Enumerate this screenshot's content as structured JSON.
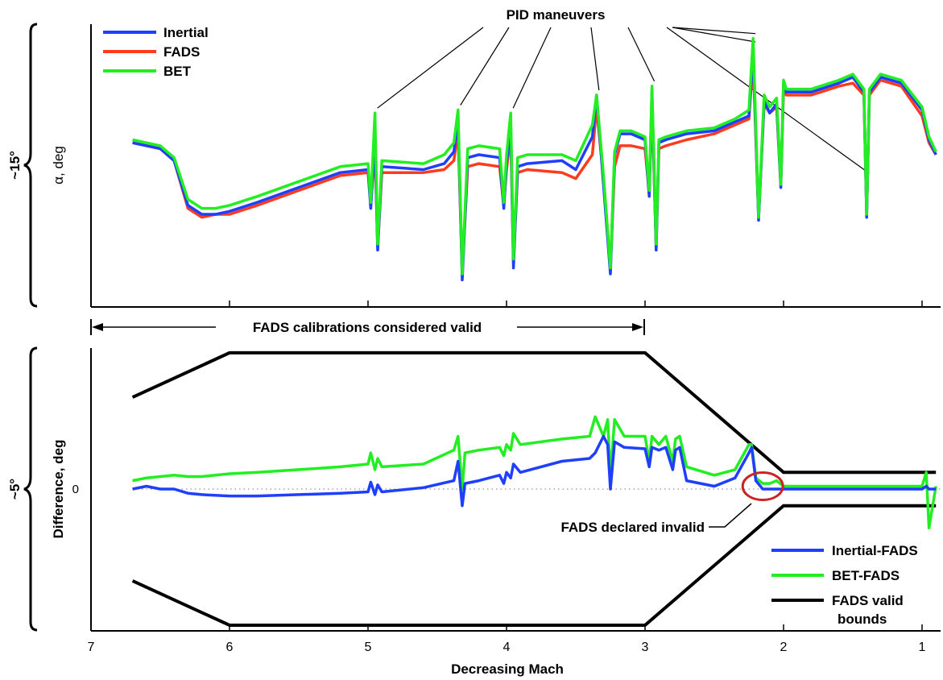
{
  "chart_data": [
    {
      "type": "line",
      "ylabel": "α, deg",
      "yspan_label": "~15°",
      "xlim": [
        7,
        0.9
      ],
      "xaxis_reversed": true,
      "legend": {
        "placement": "top-left",
        "entries": [
          "Inertial",
          "FADS",
          "BET"
        ]
      },
      "annotation": "PID maneuvers",
      "series": [
        {
          "name": "Inertial",
          "color": "#1f3fff",
          "x": [
            6.7,
            6.5,
            6.4,
            6.3,
            6.2,
            6.1,
            6.0,
            5.8,
            5.5,
            5.2,
            5.0,
            4.98,
            4.95,
            4.93,
            4.9,
            4.6,
            4.45,
            4.38,
            4.35,
            4.32,
            4.28,
            4.2,
            4.05,
            4.02,
            4.0,
            3.97,
            3.95,
            3.92,
            3.85,
            3.6,
            3.5,
            3.38,
            3.35,
            3.3,
            3.25,
            3.22,
            3.18,
            3.1,
            3.0,
            2.97,
            2.95,
            2.92,
            2.9,
            2.85,
            2.7,
            2.5,
            2.35,
            2.25,
            2.22,
            2.18,
            2.14,
            2.1,
            2.05,
            2.02,
            2.0,
            1.98,
            1.8,
            1.6,
            1.5,
            1.42,
            1.4,
            1.38,
            1.3,
            1.15,
            1.0,
            0.95,
            0.9
          ],
          "y": [
            9.4,
            9.2,
            8.8,
            7.3,
            7.0,
            7.0,
            7.1,
            7.4,
            7.9,
            8.4,
            8.5,
            7.2,
            9.6,
            5.8,
            8.6,
            8.5,
            8.7,
            9.1,
            10.2,
            4.8,
            8.9,
            9.0,
            8.9,
            7.2,
            8.7,
            10.0,
            5.2,
            8.6,
            8.7,
            8.8,
            8.5,
            9.6,
            11.0,
            8.0,
            5.0,
            9.0,
            9.7,
            9.7,
            9.5,
            7.6,
            11.1,
            5.8,
            9.4,
            9.5,
            9.7,
            9.8,
            10.1,
            10.3,
            12.5,
            6.8,
            10.8,
            10.4,
            10.7,
            7.9,
            11.4,
            11.1,
            11.1,
            11.4,
            11.6,
            11.1,
            6.9,
            11.1,
            11.6,
            11.4,
            10.5,
            9.5,
            9.0
          ]
        },
        {
          "name": "FADS",
          "color": "#ff3b1f",
          "x": [
            6.7,
            6.5,
            6.4,
            6.3,
            6.2,
            6.1,
            6.0,
            5.8,
            5.5,
            5.2,
            5.0,
            4.98,
            4.95,
            4.93,
            4.9,
            4.6,
            4.45,
            4.38,
            4.35,
            4.32,
            4.28,
            4.2,
            4.05,
            4.02,
            4.0,
            3.97,
            3.95,
            3.92,
            3.85,
            3.6,
            3.5,
            3.38,
            3.35,
            3.3,
            3.25,
            3.22,
            3.18,
            3.1,
            3.0,
            2.97,
            2.95,
            2.92,
            2.9,
            2.85,
            2.7,
            2.5,
            2.35,
            2.25,
            2.22,
            2.18,
            2.14,
            2.1,
            2.05,
            2.02,
            2.0,
            1.98,
            1.8,
            1.6,
            1.5,
            1.42,
            1.4,
            1.38,
            1.3,
            1.15,
            1.0,
            0.95,
            0.9
          ],
          "y": [
            9.4,
            9.2,
            8.8,
            7.2,
            6.9,
            7.0,
            7.0,
            7.3,
            7.8,
            8.3,
            8.4,
            7.3,
            9.2,
            5.9,
            8.4,
            8.4,
            8.5,
            8.8,
            9.8,
            5.0,
            8.6,
            8.7,
            8.6,
            7.3,
            8.5,
            9.7,
            5.4,
            8.4,
            8.5,
            8.4,
            8.2,
            9.0,
            10.6,
            8.2,
            5.2,
            8.6,
            9.3,
            9.3,
            9.2,
            7.7,
            10.8,
            5.9,
            9.2,
            9.3,
            9.5,
            9.7,
            10.0,
            10.2,
            12.2,
            6.9,
            10.7,
            10.4,
            10.6,
            8.0,
            11.2,
            11.0,
            11.0,
            11.3,
            11.4,
            11.0,
            7.0,
            11.0,
            11.5,
            11.3,
            10.3,
            9.4,
            9.0
          ]
        },
        {
          "name": "BET",
          "color": "#22ee22",
          "x": [
            6.7,
            6.5,
            6.4,
            6.3,
            6.2,
            6.1,
            6.0,
            5.8,
            5.5,
            5.2,
            5.0,
            4.98,
            4.95,
            4.93,
            4.9,
            4.6,
            4.45,
            4.38,
            4.35,
            4.32,
            4.28,
            4.2,
            4.05,
            4.02,
            4.0,
            3.97,
            3.95,
            3.92,
            3.85,
            3.6,
            3.5,
            3.38,
            3.35,
            3.3,
            3.25,
            3.22,
            3.18,
            3.1,
            3.0,
            2.97,
            2.95,
            2.92,
            2.9,
            2.85,
            2.7,
            2.5,
            2.35,
            2.25,
            2.22,
            2.18,
            2.14,
            2.1,
            2.05,
            2.02,
            2.0,
            1.98,
            1.8,
            1.6,
            1.5,
            1.42,
            1.4,
            1.38,
            1.3,
            1.15,
            1.0,
            0.95,
            0.9
          ],
          "y": [
            9.5,
            9.3,
            8.9,
            7.5,
            7.2,
            7.2,
            7.3,
            7.6,
            8.1,
            8.6,
            8.7,
            7.4,
            10.4,
            6.0,
            8.8,
            8.7,
            9.0,
            9.4,
            10.5,
            5.0,
            9.2,
            9.3,
            9.2,
            7.4,
            9.0,
            10.4,
            5.5,
            8.9,
            9.0,
            9.0,
            8.8,
            10.0,
            11.0,
            8.3,
            5.2,
            9.1,
            9.8,
            9.8,
            9.6,
            7.8,
            11.3,
            6.0,
            9.5,
            9.6,
            9.8,
            9.9,
            10.2,
            10.5,
            12.9,
            6.9,
            11.0,
            10.6,
            10.9,
            8.0,
            11.5,
            11.2,
            11.2,
            11.5,
            11.7,
            11.2,
            7.0,
            11.2,
            11.7,
            11.5,
            10.6,
            9.6,
            9.1
          ]
        }
      ]
    },
    {
      "type": "line",
      "xlabel": "Decreasing Mach",
      "ylabel": "Difference, deg",
      "yspan_label": "~5°",
      "ytick_labels": [
        "0"
      ],
      "xticks": [
        "7",
        "6",
        "5",
        "4",
        "3",
        "2",
        "1"
      ],
      "xlim": [
        7,
        0.9
      ],
      "xaxis_reversed": true,
      "legend": {
        "placement": "bottom-right",
        "entries": [
          "Inertial-FADS",
          "BET-FADS",
          "FADS valid bounds"
        ]
      },
      "annotations": [
        "FADS calibrations considered valid",
        "FADS declared invalid"
      ],
      "valid_range_mach": [
        7,
        3
      ],
      "series": [
        {
          "name": "Inertial-FADS",
          "color": "#1f3fff",
          "x": [
            6.7,
            6.6,
            6.5,
            6.4,
            6.3,
            6.2,
            6.0,
            5.8,
            5.5,
            5.2,
            5.0,
            4.98,
            4.95,
            4.93,
            4.9,
            4.6,
            4.38,
            4.35,
            4.32,
            4.3,
            4.2,
            4.05,
            4.02,
            4.0,
            3.97,
            3.95,
            3.9,
            3.6,
            3.4,
            3.36,
            3.3,
            3.27,
            3.25,
            3.22,
            3.15,
            3.0,
            2.97,
            2.95,
            2.9,
            2.85,
            2.8,
            2.78,
            2.75,
            2.7,
            2.5,
            2.35,
            2.25,
            2.23,
            2.2,
            2.15,
            2.1,
            2.0,
            1.8,
            1.5,
            1.2,
            1.0,
            0.97,
            0.95,
            0.9
          ],
          "y": [
            0.0,
            0.1,
            0.0,
            0.0,
            -0.15,
            -0.2,
            -0.25,
            -0.25,
            -0.2,
            -0.15,
            -0.1,
            0.25,
            -0.2,
            0.15,
            -0.1,
            0.05,
            0.3,
            1.0,
            -0.6,
            0.2,
            0.3,
            0.5,
            0.2,
            0.6,
            0.4,
            0.9,
            0.6,
            1.0,
            1.1,
            1.3,
            1.9,
            1.6,
            0.0,
            1.7,
            1.5,
            1.45,
            0.8,
            1.5,
            1.4,
            1.5,
            0.7,
            1.4,
            1.5,
            0.3,
            0.1,
            0.4,
            1.3,
            1.5,
            0.3,
            0.0,
            0.0,
            0.0,
            0.0,
            0.0,
            0.0,
            0.0,
            0.1,
            0.0,
            0.0
          ]
        },
        {
          "name": "BET-FADS",
          "color": "#22ee22",
          "x": [
            6.7,
            6.6,
            6.5,
            6.4,
            6.3,
            6.2,
            6.0,
            5.8,
            5.5,
            5.2,
            5.0,
            4.98,
            4.95,
            4.93,
            4.9,
            4.6,
            4.38,
            4.35,
            4.32,
            4.3,
            4.2,
            4.05,
            4.02,
            4.0,
            3.97,
            3.95,
            3.9,
            3.6,
            3.4,
            3.36,
            3.3,
            3.27,
            3.25,
            3.22,
            3.15,
            3.0,
            2.97,
            2.95,
            2.9,
            2.85,
            2.8,
            2.78,
            2.75,
            2.7,
            2.5,
            2.35,
            2.25,
            2.23,
            2.2,
            2.15,
            2.1,
            2.05,
            2.0,
            1.8,
            1.5,
            1.2,
            1.0,
            0.97,
            0.95,
            0.9
          ],
          "y": [
            0.3,
            0.4,
            0.45,
            0.5,
            0.45,
            0.45,
            0.55,
            0.6,
            0.7,
            0.8,
            0.9,
            1.3,
            0.7,
            1.1,
            0.8,
            0.9,
            1.4,
            1.9,
            0.0,
            1.3,
            1.4,
            1.5,
            1.2,
            1.6,
            1.4,
            2.0,
            1.6,
            1.8,
            1.9,
            2.6,
            1.9,
            2.5,
            0.5,
            2.5,
            1.9,
            1.9,
            1.0,
            1.9,
            1.6,
            1.9,
            1.0,
            1.8,
            1.9,
            0.8,
            0.5,
            0.7,
            1.6,
            1.6,
            0.4,
            0.2,
            0.2,
            0.3,
            0.1,
            0.1,
            0.1,
            0.1,
            0.1,
            0.6,
            -1.4,
            0.1
          ]
        },
        {
          "name": "FADS valid bounds",
          "color": "#000000",
          "segments": [
            {
              "x": [
                6.7,
                6.0,
                3.0,
                2.0,
                0.9
              ],
              "y": [
                3.3,
                4.9,
                4.9,
                0.6,
                0.6
              ]
            },
            {
              "x": [
                6.7,
                6.0,
                3.0,
                2.0,
                0.9
              ],
              "y": [
                -3.3,
                -4.9,
                -4.9,
                -0.6,
                -0.6
              ]
            }
          ]
        }
      ]
    }
  ]
}
